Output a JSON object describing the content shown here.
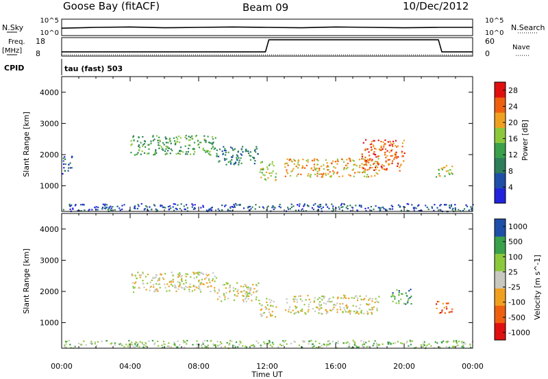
{
  "header": {
    "station": "Goose Bay (fitACF)",
    "beam": "Beam 09",
    "date": "10/Dec/2012"
  },
  "top_panels": {
    "nsky_label": "N.Sky",
    "nsearch_label": "N.Search",
    "nsky_ticks": [
      "10^5",
      "10^0"
    ],
    "nsearch_ticks": [
      "10^5",
      "10^0"
    ],
    "freq_label": "Freq.",
    "freq_unit": "[MHz]",
    "freq_ticks": [
      "18",
      "8"
    ],
    "nave_label": "Nave",
    "nave_ticks": [
      "60",
      "0"
    ],
    "cpid_label": "CPID",
    "cpid_text": "tau (fast) 503"
  },
  "colors": {
    "power": [
      "#2222dd",
      "#1e4fa8",
      "#2e7d5b",
      "#3aa04b",
      "#8cc83c",
      "#f0a020",
      "#ee6010",
      "#e01010"
    ],
    "velocity": [
      "#e01010",
      "#ee6010",
      "#f0a020",
      "#c8c8c0",
      "#8cc83c",
      "#3aa04b",
      "#1e4fa8"
    ]
  },
  "chart_data": [
    {
      "type": "line",
      "name": "N.Sky",
      "x_hours": [
        0,
        2,
        4,
        6,
        8,
        10,
        12,
        14,
        16,
        18,
        20,
        22,
        24
      ],
      "series": [
        {
          "name": "N.Sky",
          "values": [
            1.8,
            2.0,
            2.1,
            1.9,
            2.0,
            2.1,
            2.0,
            1.9,
            2.1,
            2.0,
            1.9,
            2.0,
            2.0
          ]
        }
      ]
    },
    {
      "type": "line",
      "name": "Frequency / Nave",
      "x_hours": [
        0,
        11.9,
        12.1,
        22.0,
        22.2,
        24
      ],
      "series": [
        {
          "name": "Freq",
          "unit": "MHz",
          "values": [
            10.3,
            10.3,
            16.8,
            16.8,
            10.3,
            10.3
          ]
        },
        {
          "name": "Nave",
          "values": [
            4,
            4,
            4,
            4,
            4,
            4
          ]
        }
      ],
      "ylim_freq": [
        8,
        18
      ],
      "ylim_nave": [
        0,
        60
      ]
    },
    {
      "type": "heatmap",
      "name": "Power",
      "xlabel": "",
      "ylabel": "Slant Range [km]",
      "xlim_hours": [
        0,
        24
      ],
      "ylim_km": [
        180,
        4500
      ],
      "yticks": [
        1000,
        2000,
        3000,
        4000
      ],
      "colorbar": {
        "label": "Power [dB]",
        "ticks": [
          4,
          8,
          12,
          16,
          20,
          24,
          28
        ],
        "range": [
          0,
          30
        ]
      },
      "bands": [
        {
          "t0": 0.0,
          "t1": 0.6,
          "r0": 1400,
          "r1": 2000,
          "level": 1
        },
        {
          "t0": 4.0,
          "t1": 9.0,
          "r0": 2000,
          "r1": 2650,
          "level": 3
        },
        {
          "t0": 9.0,
          "t1": 11.5,
          "r0": 1700,
          "r1": 2300,
          "level": 2
        },
        {
          "t0": 11.5,
          "t1": 12.5,
          "r0": 1200,
          "r1": 1800,
          "level": 4
        },
        {
          "t0": 13.0,
          "t1": 18.5,
          "r0": 1300,
          "r1": 1900,
          "level": 5
        },
        {
          "t0": 17.5,
          "t1": 20.0,
          "r0": 1500,
          "r1": 2500,
          "level": 6
        },
        {
          "t0": 21.8,
          "t1": 22.8,
          "r0": 1300,
          "r1": 1700,
          "level": 4
        },
        {
          "t0": 0.0,
          "t1": 24.0,
          "r0": 200,
          "r1": 450,
          "level": 1
        }
      ]
    },
    {
      "type": "heatmap",
      "name": "Velocity",
      "xlabel": "Time UT",
      "ylabel": "Slant Range [km]",
      "xlim_hours": [
        0,
        24
      ],
      "ylim_km": [
        180,
        4500
      ],
      "xticks": [
        "00:00",
        "04:00",
        "08:00",
        "12:00",
        "16:00",
        "20:00",
        "00:00"
      ],
      "yticks": [
        1000,
        2000,
        3000,
        4000
      ],
      "colorbar": {
        "label": "Velocity [m s^-1]",
        "ticks": [
          "1000",
          "500",
          "100",
          "25",
          "-25",
          "-100",
          "-500",
          "-1000"
        ]
      },
      "bands": [
        {
          "t0": 4.0,
          "t1": 9.0,
          "r0": 2000,
          "r1": 2650,
          "level": 3
        },
        {
          "t0": 9.0,
          "t1": 11.5,
          "r0": 1700,
          "r1": 2300,
          "level": 3
        },
        {
          "t0": 11.5,
          "t1": 12.5,
          "r0": 1200,
          "r1": 1800,
          "level": 3
        },
        {
          "t0": 13.0,
          "t1": 18.5,
          "r0": 1300,
          "r1": 1900,
          "level": 3
        },
        {
          "t0": 19.2,
          "t1": 20.4,
          "r0": 1600,
          "r1": 2100,
          "level": 5
        },
        {
          "t0": 21.8,
          "t1": 22.8,
          "r0": 1300,
          "r1": 1700,
          "level": 1
        },
        {
          "t0": 0.0,
          "t1": 24.0,
          "r0": 200,
          "r1": 450,
          "level": 4
        }
      ]
    }
  ]
}
